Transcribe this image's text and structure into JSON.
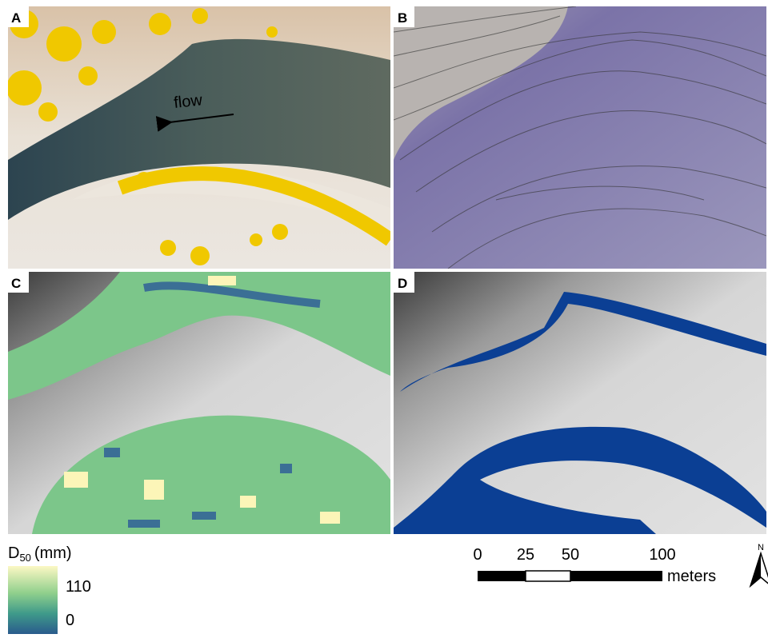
{
  "panels": [
    {
      "label": "A",
      "annotation": "flow"
    },
    {
      "label": "B"
    },
    {
      "label": "C"
    },
    {
      "label": "D"
    }
  ],
  "legend": {
    "title": "D",
    "title_sub": "50",
    "title_unit": "(mm)",
    "max_label": 110,
    "min_label": 0
  },
  "scale_bar": {
    "labels": [
      0,
      25,
      50,
      100
    ],
    "unit": "meters"
  },
  "north": "N"
}
